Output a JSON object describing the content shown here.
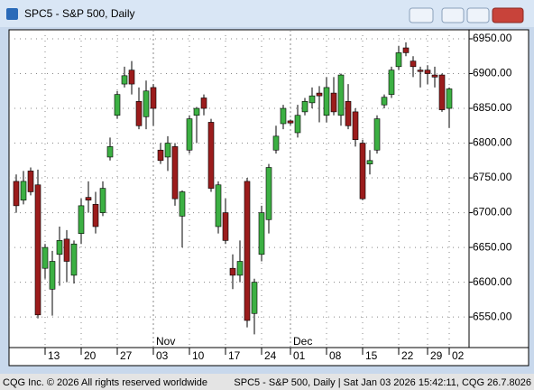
{
  "window": {
    "title": "SPC5 - S&P 500, Daily",
    "footer_left": "CQG Inc. © 2026 All rights reserved worldwide",
    "footer_right": "SPC5 - S&P 500, Daily | Sat Jan 03 2026 15:42:11, CQG 26.7.8026"
  },
  "chart_data": {
    "type": "candlestick",
    "categories": [
      null,
      null,
      null,
      null,
      "13",
      null,
      null,
      null,
      null,
      "20",
      null,
      null,
      null,
      null,
      "27",
      null,
      null,
      null,
      null,
      "03",
      null,
      null,
      null,
      null,
      "10",
      null,
      null,
      null,
      null,
      "17",
      null,
      null,
      null,
      null,
      "24",
      null,
      null,
      null,
      "01",
      null,
      null,
      null,
      null,
      "08",
      null,
      null,
      null,
      null,
      "15",
      null,
      null,
      null,
      null,
      "22",
      null,
      null,
      null,
      "29",
      null,
      null,
      "02"
    ],
    "months": [
      null,
      null,
      null,
      null,
      null,
      null,
      null,
      null,
      null,
      null,
      null,
      null,
      null,
      null,
      null,
      null,
      null,
      null,
      null,
      "Nov",
      null,
      null,
      null,
      null,
      null,
      null,
      null,
      null,
      null,
      null,
      null,
      null,
      null,
      null,
      null,
      null,
      null,
      null,
      "Dec",
      null,
      null,
      null,
      null,
      null,
      null,
      null,
      null,
      null,
      null,
      null,
      null,
      null,
      null,
      null,
      null,
      null,
      null,
      null,
      null,
      null,
      null
    ],
    "open": [
      6745,
      6718,
      6760,
      6740,
      6620,
      6590,
      6640,
      6662,
      6610,
      6670,
      6722,
      6712,
      6700,
      6780,
      6840,
      6885,
      6905,
      6860,
      6838,
      6880,
      6790,
      6780,
      6795,
      6695,
      6790,
      6840,
      6865,
      6830,
      6680,
      6700,
      6620,
      6610,
      6745,
      6555,
      6640,
      6690,
      6790,
      6828,
      6832,
      6815,
      6845,
      6858,
      6872,
      6840,
      6872,
      6840,
      6860,
      6845,
      6800,
      6770,
      6790,
      6855,
      6870,
      6910,
      6937,
      6918,
      6905,
      6905,
      6898,
      6898,
      6850
    ],
    "high": [
      6755,
      6760,
      6765,
      6762,
      6655,
      6645,
      6680,
      6675,
      6660,
      6720,
      6745,
      6730,
      6745,
      6808,
      6875,
      6910,
      6918,
      6880,
      6890,
      6885,
      6800,
      6810,
      6800,
      6732,
      6840,
      6852,
      6870,
      6835,
      6745,
      6720,
      6640,
      6660,
      6750,
      6605,
      6710,
      6770,
      6825,
      6855,
      6834,
      6855,
      6865,
      6880,
      6882,
      6895,
      6895,
      6900,
      6885,
      6850,
      6805,
      6790,
      6840,
      6870,
      6910,
      6940,
      6945,
      6925,
      6910,
      6912,
      6910,
      6900,
      6880
    ],
    "low": [
      6700,
      6712,
      6725,
      6548,
      6605,
      6552,
      6595,
      6600,
      6598,
      6655,
      6700,
      6670,
      6695,
      6775,
      6835,
      6880,
      6870,
      6820,
      6820,
      6825,
      6770,
      6760,
      6710,
      6650,
      6785,
      6800,
      6840,
      6730,
      6670,
      6655,
      6590,
      6600,
      6535,
      6525,
      6630,
      6670,
      6785,
      6820,
      6826,
      6808,
      6840,
      6850,
      6830,
      6830,
      6840,
      6825,
      6820,
      6795,
      6718,
      6755,
      6785,
      6850,
      6865,
      6905,
      6925,
      6895,
      6880,
      6885,
      6880,
      6845,
      6822
    ],
    "close": [
      6710,
      6745,
      6730,
      6553,
      6650,
      6630,
      6660,
      6630,
      6655,
      6710,
      6718,
      6680,
      6735,
      6795,
      6870,
      6897,
      6885,
      6825,
      6875,
      6850,
      6775,
      6800,
      6720,
      6730,
      6835,
      6850,
      6850,
      6735,
      6740,
      6660,
      6610,
      6630,
      6545,
      6600,
      6700,
      6765,
      6810,
      6850,
      6829,
      6840,
      6860,
      6868,
      6868,
      6880,
      6845,
      6898,
      6825,
      6805,
      6720,
      6775,
      6835,
      6866,
      6905,
      6930,
      6930,
      6910,
      6903,
      6900,
      6895,
      6848,
      6878
    ],
    "up_color": "#3cb043",
    "down_color": "#9b1c1c",
    "ylim": [
      6506,
      6963
    ],
    "yticks": [
      {
        "value": 6550,
        "label": "6550.00"
      },
      {
        "value": 6600,
        "label": "6600.00"
      },
      {
        "value": 6650,
        "label": "6650.00"
      },
      {
        "value": 6700,
        "label": "6700.00"
      },
      {
        "value": 6750,
        "label": "6750.00"
      },
      {
        "value": 6800,
        "label": "6800.00"
      },
      {
        "value": 6850,
        "label": "6850.00"
      },
      {
        "value": 6900,
        "label": "6900.00"
      },
      {
        "value": 6950,
        "label": "6950.00"
      }
    ],
    "grid": true
  }
}
